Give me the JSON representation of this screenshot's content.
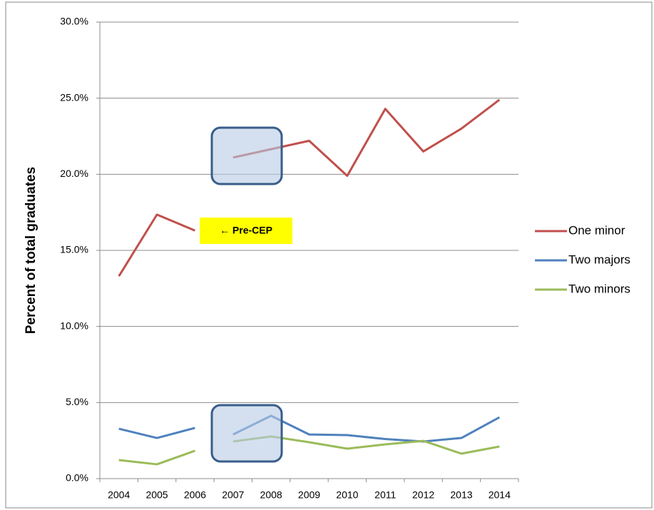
{
  "chart_data": {
    "type": "line",
    "y_label": "Percent of total graduates",
    "annotation": "← Pre-CEP",
    "categories": [
      "2004",
      "2005",
      "2006",
      "2007",
      "2008",
      "2009",
      "2010",
      "2011",
      "2012",
      "2013",
      "2014"
    ],
    "break_after_index": 2,
    "series": [
      {
        "name": "One minor",
        "color": "#c0504d",
        "values": [
          13.3,
          17.35,
          16.3,
          21.1,
          21.65,
          22.2,
          19.9,
          24.3,
          21.5,
          23.0,
          24.9
        ]
      },
      {
        "name": "Two majors",
        "color": "#4f81bd",
        "values": [
          3.28,
          2.67,
          3.33,
          2.9,
          4.13,
          2.9,
          2.86,
          2.6,
          2.44,
          2.67,
          4.03
        ]
      },
      {
        "name": "Two minors",
        "color": "#9bbb59",
        "values": [
          1.22,
          0.94,
          1.83,
          2.44,
          2.77,
          2.39,
          1.97,
          2.25,
          2.48,
          1.64,
          2.11
        ]
      }
    ],
    "ylim": [
      0,
      30
    ],
    "yticks": [
      {
        "value": 0,
        "label": "0.0%"
      },
      {
        "value": 5,
        "label": "5.0%"
      },
      {
        "value": 10,
        "label": "10.0%"
      },
      {
        "value": 15,
        "label": "15.0%"
      },
      {
        "value": 20,
        "label": "20.0%"
      },
      {
        "value": 25,
        "label": "25.0%"
      },
      {
        "value": 30,
        "label": "30.0%"
      }
    ],
    "grid": true,
    "legend": "right"
  }
}
